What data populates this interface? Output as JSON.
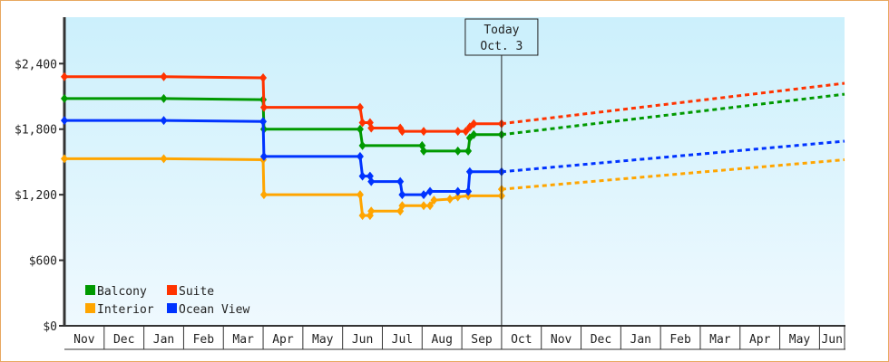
{
  "chart_data": {
    "type": "line",
    "title": "",
    "xlabel": "",
    "ylabel": "",
    "x_unit": "months since Nov 1 (first year)",
    "xlim": [
      0,
      19.63
    ],
    "ylim": [
      0,
      2825
    ],
    "y_ticks": [
      0,
      600,
      1200,
      1800,
      2400
    ],
    "y_tick_labels": [
      "$0",
      "$600",
      "$1,200",
      "$1,800",
      "$2,400"
    ],
    "x_tick_labels": [
      "Nov",
      "Dec",
      "Jan",
      "Feb",
      "Mar",
      "Apr",
      "May",
      "Jun",
      "Jul",
      "Aug",
      "Sep",
      "Oct",
      "Nov",
      "Dec",
      "Jan",
      "Feb",
      "Mar",
      "Apr",
      "May",
      "Jun"
    ],
    "grid": false,
    "legend_position": "bottom-left",
    "today": {
      "label_line1": "Today",
      "label_line2": "Oct. 3",
      "x": 11.0
    },
    "series": [
      {
        "name": "Balcony",
        "color": "#009900",
        "points": [
          [
            0,
            2080
          ],
          [
            2.5,
            2080
          ],
          [
            5.0,
            2070
          ],
          [
            5.02,
            1800
          ],
          [
            7.44,
            1800
          ],
          [
            7.5,
            1650
          ],
          [
            9.0,
            1650
          ],
          [
            9.04,
            1600
          ],
          [
            9.9,
            1600
          ],
          [
            10.16,
            1600
          ],
          [
            10.2,
            1720
          ],
          [
            10.3,
            1750
          ],
          [
            11.0,
            1750
          ]
        ],
        "forecast": [
          [
            11.0,
            1750
          ],
          [
            19.63,
            2120
          ]
        ]
      },
      {
        "name": "Suite",
        "color": "#ff3300",
        "points": [
          [
            0,
            2280
          ],
          [
            2.5,
            2280
          ],
          [
            5.0,
            2270
          ],
          [
            5.02,
            2000
          ],
          [
            7.44,
            2000
          ],
          [
            7.5,
            1860
          ],
          [
            7.69,
            1860
          ],
          [
            7.72,
            1810
          ],
          [
            8.45,
            1810
          ],
          [
            8.5,
            1780
          ],
          [
            9.04,
            1780
          ],
          [
            9.9,
            1780
          ],
          [
            10.1,
            1780
          ],
          [
            10.2,
            1820
          ],
          [
            10.3,
            1850
          ],
          [
            11.0,
            1850
          ]
        ],
        "forecast": [
          [
            11.0,
            1850
          ],
          [
            19.63,
            2220
          ]
        ]
      },
      {
        "name": "Interior",
        "color": "#ffa500",
        "points": [
          [
            0,
            1530
          ],
          [
            2.5,
            1530
          ],
          [
            5.0,
            1520
          ],
          [
            5.02,
            1200
          ],
          [
            7.44,
            1200
          ],
          [
            7.5,
            1010
          ],
          [
            7.69,
            1010
          ],
          [
            7.72,
            1050
          ],
          [
            8.45,
            1050
          ],
          [
            8.5,
            1100
          ],
          [
            9.04,
            1100
          ],
          [
            9.2,
            1100
          ],
          [
            9.3,
            1150
          ],
          [
            9.7,
            1160
          ],
          [
            9.9,
            1180
          ],
          [
            10.16,
            1190
          ],
          [
            11.0,
            1190
          ],
          [
            11.0,
            1250
          ]
        ],
        "forecast": [
          [
            11.0,
            1250
          ],
          [
            19.63,
            1520
          ]
        ]
      },
      {
        "name": "Ocean View",
        "color": "#0033ff",
        "points": [
          [
            0,
            1880
          ],
          [
            2.5,
            1880
          ],
          [
            5.0,
            1870
          ],
          [
            5.02,
            1550
          ],
          [
            7.44,
            1550
          ],
          [
            7.5,
            1370
          ],
          [
            7.69,
            1370
          ],
          [
            7.72,
            1320
          ],
          [
            8.45,
            1320
          ],
          [
            8.5,
            1200
          ],
          [
            9.04,
            1200
          ],
          [
            9.2,
            1230
          ],
          [
            9.9,
            1230
          ],
          [
            10.16,
            1230
          ],
          [
            10.2,
            1410
          ],
          [
            11.0,
            1410
          ]
        ],
        "forecast": [
          [
            11.0,
            1410
          ],
          [
            19.63,
            1690
          ]
        ]
      }
    ]
  }
}
